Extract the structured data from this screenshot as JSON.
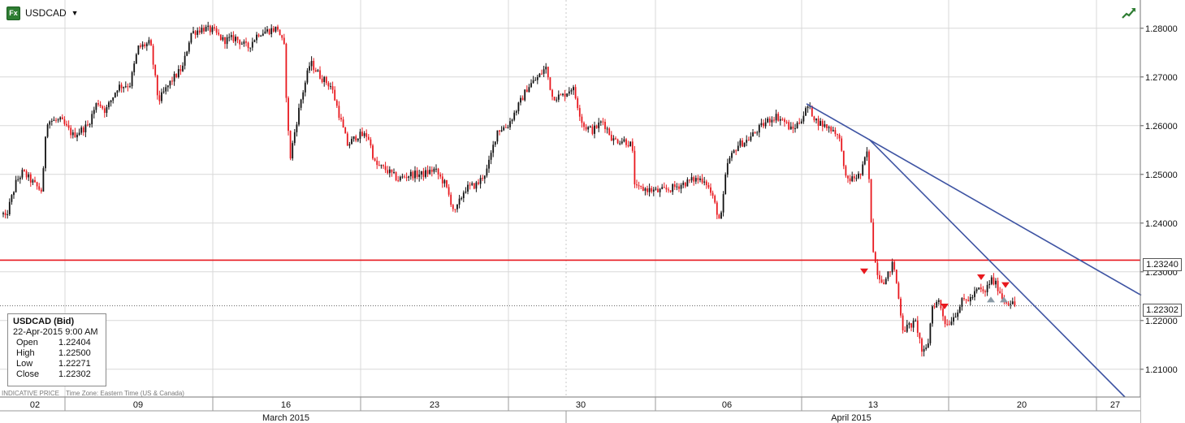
{
  "header": {
    "symbol": "USDCAD",
    "fx_badge": "Fx",
    "dropdown_icon": "caret-down-icon",
    "trend_icon": "trend-up-icon"
  },
  "tooltip": {
    "title": "USDCAD (Bid)",
    "datetime": "22-Apr-2015 9:00 AM",
    "rows": [
      {
        "label": "Open",
        "value": "1.22404"
      },
      {
        "label": "High",
        "value": "1.22500"
      },
      {
        "label": "Low",
        "value": "1.22271"
      },
      {
        "label": "Close",
        "value": "1.22302"
      }
    ]
  },
  "footer": {
    "indicative": "INDICATIVE PRICE",
    "timezone": "Time Zone: Eastern Time (US & Canada)"
  },
  "price_labels": {
    "horizontal_line": "1.23240",
    "last_close": "1.22302"
  },
  "colors": {
    "up": "#111111",
    "down": "#e8181e",
    "trendline": "#3e54a3",
    "hline": "#e8181e",
    "grid": "#d8d8d8"
  },
  "chart_data": {
    "type": "candlestick",
    "title": "",
    "instrument": "USDCAD",
    "y_axis": {
      "position": "right",
      "range": [
        1.2043,
        1.2858
      ],
      "ticks": [
        "1.28000",
        "1.27000",
        "1.26000",
        "1.25000",
        "1.24000",
        "1.23000",
        "1.22000",
        "1.21000"
      ]
    },
    "x_axis": {
      "day_ticks": [
        "02",
        "09",
        "16",
        "23",
        "30",
        "06",
        "13",
        "20",
        "27"
      ],
      "month_labels": [
        "March 2015",
        "April 2015"
      ]
    },
    "path_points": [
      [
        0,
        1.2445
      ],
      [
        6,
        1.2405
      ],
      [
        20,
        1.2485
      ],
      [
        28,
        1.2505
      ],
      [
        45,
        1.2475
      ],
      [
        52,
        1.2465
      ],
      [
        57,
        1.261
      ],
      [
        75,
        1.261
      ],
      [
        90,
        1.258
      ],
      [
        108,
        1.26
      ],
      [
        120,
        1.265
      ],
      [
        130,
        1.263
      ],
      [
        145,
        1.268
      ],
      [
        160,
        1.2685
      ],
      [
        170,
        1.276
      ],
      [
        185,
        1.277
      ],
      [
        195,
        1.265
      ],
      [
        210,
        1.269
      ],
      [
        225,
        1.272
      ],
      [
        235,
        1.279
      ],
      [
        250,
        1.28
      ],
      [
        262,
        1.2795
      ],
      [
        275,
        1.2775
      ],
      [
        290,
        1.278
      ],
      [
        305,
        1.276
      ],
      [
        318,
        1.279
      ],
      [
        330,
        1.2795
      ],
      [
        342,
        1.28
      ],
      [
        350,
        1.276
      ],
      [
        353,
        1.264
      ],
      [
        357,
        1.253
      ],
      [
        362,
        1.258
      ],
      [
        370,
        1.265
      ],
      [
        382,
        1.273
      ],
      [
        395,
        1.27
      ],
      [
        408,
        1.268
      ],
      [
        418,
        1.262
      ],
      [
        428,
        1.256
      ],
      [
        440,
        1.258
      ],
      [
        453,
        1.258
      ],
      [
        462,
        1.252
      ],
      [
        475,
        1.251
      ],
      [
        490,
        1.249
      ],
      [
        505,
        1.25
      ],
      [
        520,
        1.25
      ],
      [
        535,
        1.251
      ],
      [
        548,
        1.248
      ],
      [
        560,
        1.242
      ],
      [
        572,
        1.247
      ],
      [
        588,
        1.248
      ],
      [
        600,
        1.251
      ],
      [
        612,
        1.259
      ],
      [
        625,
        1.26
      ],
      [
        638,
        1.264
      ],
      [
        650,
        1.268
      ],
      [
        663,
        1.27
      ],
      [
        672,
        1.272
      ],
      [
        680,
        1.266
      ],
      [
        692,
        1.266
      ],
      [
        705,
        1.268
      ],
      [
        718,
        1.26
      ],
      [
        730,
        1.259
      ],
      [
        742,
        1.261
      ],
      [
        755,
        1.257
      ],
      [
        768,
        1.257
      ],
      [
        778,
        1.256
      ],
      [
        782,
        1.247
      ],
      [
        795,
        1.247
      ],
      [
        810,
        1.2465
      ],
      [
        825,
        1.247
      ],
      [
        840,
        1.248
      ],
      [
        855,
        1.249
      ],
      [
        868,
        1.249
      ],
      [
        878,
        1.245
      ],
      [
        887,
        1.24
      ],
      [
        895,
        1.252
      ],
      [
        908,
        1.256
      ],
      [
        920,
        1.257
      ],
      [
        932,
        1.259
      ],
      [
        945,
        1.261
      ],
      [
        955,
        1.262
      ],
      [
        965,
        1.261
      ],
      [
        975,
        1.259
      ],
      [
        985,
        1.261
      ],
      [
        995,
        1.264
      ],
      [
        1005,
        1.261
      ],
      [
        1015,
        1.26
      ],
      [
        1028,
        1.259
      ],
      [
        1036,
        1.256
      ],
      [
        1040,
        1.249
      ],
      [
        1048,
        1.249
      ],
      [
        1060,
        1.25
      ],
      [
        1068,
        1.255
      ],
      [
        1072,
        1.242
      ],
      [
        1076,
        1.233
      ],
      [
        1082,
        1.229
      ],
      [
        1090,
        1.228
      ],
      [
        1100,
        1.232
      ],
      [
        1106,
        1.225
      ],
      [
        1112,
        1.218
      ],
      [
        1120,
        1.219
      ],
      [
        1128,
        1.2195
      ],
      [
        1136,
        1.213
      ],
      [
        1142,
        1.2145
      ],
      [
        1148,
        1.223
      ],
      [
        1156,
        1.224
      ],
      [
        1165,
        1.219
      ],
      [
        1175,
        1.221
      ],
      [
        1185,
        1.224
      ],
      [
        1195,
        1.2245
      ],
      [
        1205,
        1.2265
      ],
      [
        1212,
        1.2255
      ],
      [
        1220,
        1.2285
      ],
      [
        1228,
        1.227
      ],
      [
        1236,
        1.224
      ],
      [
        1244,
        1.2238
      ],
      [
        1250,
        1.223
      ]
    ],
    "horizontal_line": 1.2324,
    "last_close_line": 1.22302,
    "trendlines": [
      {
        "from": [
          993,
          1.2645
        ],
        "to": [
          1405,
          1.2252
        ]
      },
      {
        "from": [
          1070,
          1.2572
        ],
        "to": [
          1385,
          1.2043
        ]
      }
    ],
    "markers": [
      {
        "type": "down",
        "x": 1064,
        "y": 1.23,
        "color": "#e8181e"
      },
      {
        "type": "down",
        "x": 1163,
        "y": 1.2228,
        "color": "#e8181e"
      },
      {
        "type": "down",
        "x": 1208,
        "y": 1.2288,
        "color": "#e8181e"
      },
      {
        "type": "down",
        "x": 1238,
        "y": 1.2272,
        "color": "#e8181e"
      },
      {
        "type": "up",
        "x": 1220,
        "y": 1.2244,
        "color": "#8a9aa6"
      },
      {
        "type": "up",
        "x": 1236,
        "y": 1.2244,
        "color": "#8a9aa6"
      }
    ]
  }
}
